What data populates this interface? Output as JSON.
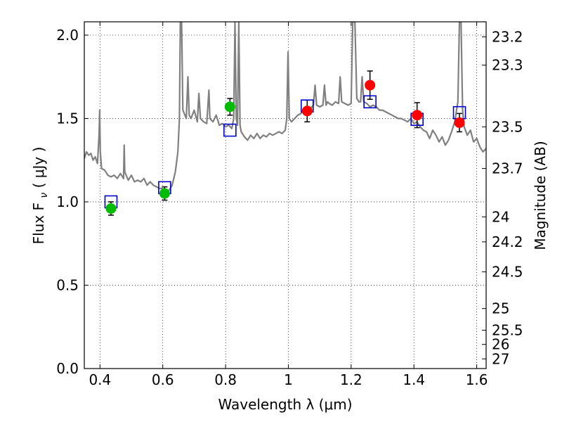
{
  "chart_data": {
    "type": "scatter",
    "xlabel": "Wavelength  λ (μm)",
    "ylabel": "Flux  F",
    "ylabel_sub": "ν",
    "ylabel_unit": "( μJy )",
    "y2label": "Magnitude (AB)",
    "xlim": [
      0.35,
      1.63
    ],
    "ylim": [
      0.0,
      2.08
    ],
    "grid": true,
    "x_ticks": [
      0.4,
      0.6,
      0.8,
      1.0,
      1.2,
      1.4,
      1.6
    ],
    "x_tick_labels": [
      "0.4",
      "0.6",
      "0.8",
      "1",
      "1.2",
      "1.4",
      "1.6"
    ],
    "y_ticks": [
      0.0,
      0.5,
      1.0,
      1.5,
      2.0
    ],
    "y_tick_labels": [
      "0.0",
      "0.5",
      "1.0",
      "1.5",
      "2.0"
    ],
    "mag_ticks": [
      {
        "label": "23.2",
        "flux": 1.99
      },
      {
        "label": "23.3",
        "flux": 1.82
      },
      {
        "label": "23.5",
        "flux": 1.45
      },
      {
        "label": "23.7",
        "flux": 1.2
      },
      {
        "label": "24",
        "flux": 0.91
      },
      {
        "label": "24.2",
        "flux": 0.76
      },
      {
        "label": "24.5",
        "flux": 0.58
      },
      {
        "label": "25",
        "flux": 0.36
      },
      {
        "label": "25.5",
        "flux": 0.23
      },
      {
        "label": "26",
        "flux": 0.145
      },
      {
        "label": "27",
        "flux": 0.058
      }
    ],
    "series": [
      {
        "color": "#00bb00",
        "marker": "circle",
        "points": [
          {
            "x": 0.435,
            "y": 0.96,
            "err": 0.04
          },
          {
            "x": 0.606,
            "y": 1.05,
            "err": 0.04
          },
          {
            "x": 0.814,
            "y": 1.57,
            "err": 0.05
          }
        ]
      },
      {
        "color": "#ff0000",
        "marker": "circle",
        "points": [
          {
            "x": 1.06,
            "y": 1.545,
            "err": 0.065
          },
          {
            "x": 1.26,
            "y": 1.7,
            "err": 0.085
          },
          {
            "x": 1.41,
            "y": 1.52,
            "err": 0.075
          },
          {
            "x": 1.545,
            "y": 1.475,
            "err": 0.055
          }
        ]
      },
      {
        "color": "#0000cc",
        "marker": "open-square",
        "points": [
          {
            "x": 0.435,
            "y": 1.0
          },
          {
            "x": 0.606,
            "y": 1.085
          },
          {
            "x": 0.814,
            "y": 1.43
          },
          {
            "x": 1.06,
            "y": 1.575
          },
          {
            "x": 1.26,
            "y": 1.6
          },
          {
            "x": 1.41,
            "y": 1.495
          },
          {
            "x": 1.545,
            "y": 1.535
          }
        ]
      }
    ],
    "spectrum": {
      "color": "#808080",
      "points": [
        [
          0.35,
          1.26
        ],
        [
          0.357,
          1.3
        ],
        [
          0.364,
          1.28
        ],
        [
          0.371,
          1.29
        ],
        [
          0.378,
          1.25
        ],
        [
          0.385,
          1.27
        ],
        [
          0.392,
          1.23
        ],
        [
          0.397,
          1.4
        ],
        [
          0.399,
          1.55
        ],
        [
          0.401,
          1.3
        ],
        [
          0.405,
          1.2
        ],
        [
          0.415,
          1.19
        ],
        [
          0.425,
          1.16
        ],
        [
          0.435,
          1.15
        ],
        [
          0.445,
          1.16
        ],
        [
          0.455,
          1.14
        ],
        [
          0.465,
          1.17
        ],
        [
          0.475,
          1.14
        ],
        [
          0.477,
          1.34
        ],
        [
          0.479,
          1.18
        ],
        [
          0.49,
          1.13
        ],
        [
          0.5,
          1.16
        ],
        [
          0.51,
          1.12
        ],
        [
          0.52,
          1.13
        ],
        [
          0.53,
          1.12
        ],
        [
          0.54,
          1.14
        ],
        [
          0.55,
          1.1
        ],
        [
          0.56,
          1.12
        ],
        [
          0.57,
          1.1
        ],
        [
          0.58,
          1.09
        ],
        [
          0.59,
          1.08
        ],
        [
          0.6,
          1.08
        ],
        [
          0.61,
          1.06
        ],
        [
          0.62,
          1.07
        ],
        [
          0.63,
          1.1
        ],
        [
          0.64,
          1.18
        ],
        [
          0.648,
          1.3
        ],
        [
          0.653,
          1.5
        ],
        [
          0.656,
          2.08
        ],
        [
          0.66,
          2.08
        ],
        [
          0.664,
          1.55
        ],
        [
          0.675,
          1.5
        ],
        [
          0.68,
          1.75
        ],
        [
          0.684,
          1.52
        ],
        [
          0.69,
          1.5
        ],
        [
          0.7,
          1.55
        ],
        [
          0.71,
          1.48
        ],
        [
          0.715,
          1.65
        ],
        [
          0.72,
          1.5
        ],
        [
          0.73,
          1.48
        ],
        [
          0.74,
          1.47
        ],
        [
          0.747,
          1.67
        ],
        [
          0.75,
          1.5
        ],
        [
          0.76,
          1.48
        ],
        [
          0.77,
          1.52
        ],
        [
          0.78,
          1.46
        ],
        [
          0.79,
          1.47
        ],
        [
          0.8,
          1.45
        ],
        [
          0.81,
          1.46
        ],
        [
          0.82,
          1.44
        ],
        [
          0.826,
          1.5
        ],
        [
          0.83,
          2.08
        ],
        [
          0.834,
          1.5
        ],
        [
          0.838,
          1.46
        ],
        [
          0.842,
          2.08
        ],
        [
          0.846,
          1.46
        ],
        [
          0.85,
          1.42
        ],
        [
          0.86,
          1.39
        ],
        [
          0.87,
          1.37
        ],
        [
          0.88,
          1.4
        ],
        [
          0.89,
          1.38
        ],
        [
          0.9,
          1.41
        ],
        [
          0.91,
          1.38
        ],
        [
          0.92,
          1.4
        ],
        [
          0.93,
          1.39
        ],
        [
          0.94,
          1.41
        ],
        [
          0.95,
          1.4
        ],
        [
          0.96,
          1.41
        ],
        [
          0.97,
          1.42
        ],
        [
          0.98,
          1.41
        ],
        [
          0.99,
          1.43
        ],
        [
          0.995,
          1.5
        ],
        [
          0.999,
          1.9
        ],
        [
          1.003,
          1.5
        ],
        [
          1.01,
          1.48
        ],
        [
          1.02,
          1.5
        ],
        [
          1.03,
          1.52
        ],
        [
          1.04,
          1.53
        ],
        [
          1.05,
          1.55
        ],
        [
          1.06,
          1.56
        ],
        [
          1.07,
          1.56
        ],
        [
          1.08,
          1.58
        ],
        [
          1.085,
          1.7
        ],
        [
          1.09,
          1.58
        ],
        [
          1.1,
          1.57
        ],
        [
          1.11,
          1.58
        ],
        [
          1.115,
          1.7
        ],
        [
          1.12,
          1.58
        ],
        [
          1.125,
          1.6
        ],
        [
          1.13,
          1.59
        ],
        [
          1.14,
          1.58
        ],
        [
          1.15,
          1.6
        ],
        [
          1.16,
          1.59
        ],
        [
          1.165,
          1.75
        ],
        [
          1.17,
          1.6
        ],
        [
          1.18,
          1.59
        ],
        [
          1.19,
          1.58
        ],
        [
          1.2,
          1.59
        ],
        [
          1.205,
          2.08
        ],
        [
          1.212,
          2.08
        ],
        [
          1.218,
          1.62
        ],
        [
          1.225,
          1.6
        ],
        [
          1.23,
          1.6
        ],
        [
          1.235,
          1.75
        ],
        [
          1.24,
          1.6
        ],
        [
          1.25,
          1.59
        ],
        [
          1.26,
          1.57
        ],
        [
          1.27,
          1.58
        ],
        [
          1.28,
          1.57
        ],
        [
          1.29,
          1.55
        ],
        [
          1.3,
          1.55
        ],
        [
          1.31,
          1.54
        ],
        [
          1.32,
          1.53
        ],
        [
          1.33,
          1.52
        ],
        [
          1.34,
          1.51
        ],
        [
          1.35,
          1.5
        ],
        [
          1.36,
          1.5
        ],
        [
          1.37,
          1.49
        ],
        [
          1.38,
          1.48
        ],
        [
          1.39,
          1.5
        ],
        [
          1.4,
          1.47
        ],
        [
          1.41,
          1.48
        ],
        [
          1.42,
          1.45
        ],
        [
          1.43,
          1.43
        ],
        [
          1.44,
          1.42
        ],
        [
          1.45,
          1.38
        ],
        [
          1.46,
          1.43
        ],
        [
          1.47,
          1.4
        ],
        [
          1.48,
          1.36
        ],
        [
          1.49,
          1.39
        ],
        [
          1.5,
          1.34
        ],
        [
          1.51,
          1.37
        ],
        [
          1.52,
          1.42
        ],
        [
          1.53,
          1.48
        ],
        [
          1.54,
          1.6
        ],
        [
          1.545,
          2.08
        ],
        [
          1.55,
          2.08
        ],
        [
          1.555,
          1.55
        ],
        [
          1.56,
          1.45
        ],
        [
          1.57,
          1.4
        ],
        [
          1.58,
          1.43
        ],
        [
          1.59,
          1.36
        ],
        [
          1.6,
          1.38
        ],
        [
          1.61,
          1.33
        ],
        [
          1.62,
          1.3
        ],
        [
          1.63,
          1.32
        ]
      ]
    }
  }
}
